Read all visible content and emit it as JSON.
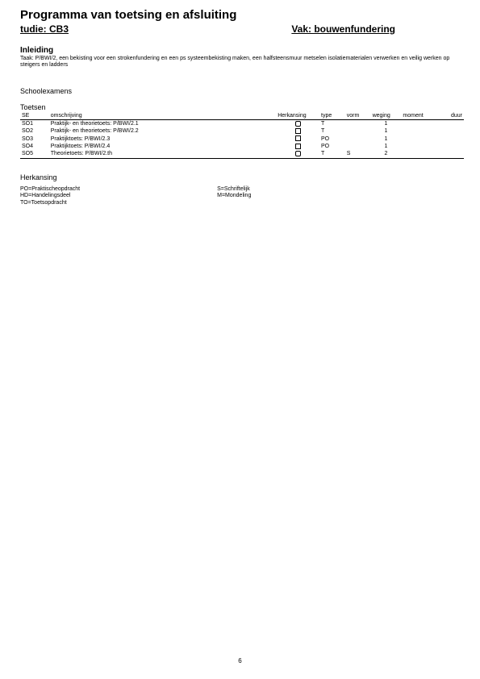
{
  "header": {
    "main_title": "Programma van toetsing en afsluiting",
    "studie_label": "tudie: CB3",
    "vak_label": "Vak: bouwenfundering"
  },
  "inleiding": {
    "heading": "Inleiding",
    "body": "Taak: P/BWI/2, een bekisting voor een strokenfundering en een ps systeembekisting maken, een halfsteensmuur metselen isolatiematerialen verwerken en veilig werken op steigers en ladders"
  },
  "schoolexamens": {
    "heading": "Schoolexamens",
    "toetsen_heading": "Toetsen",
    "columns": {
      "se": "SE",
      "omschrijving": "omschrijving",
      "herkansing": "Herkansing",
      "type": "type",
      "vorm": "vorm",
      "weging": "weging",
      "moment": "moment",
      "duur": "duur"
    },
    "rows": [
      {
        "se": "SO1",
        "oms": "Praktijk- en theorietoets: P/BWI/2.1",
        "herk_shape": "round",
        "type": "T",
        "vorm": "",
        "weging": "1"
      },
      {
        "se": "SO2",
        "oms": "Praktijk- en theorietoets: P/BWI/2.2",
        "herk_shape": "square",
        "type": "T",
        "vorm": "",
        "weging": "1"
      },
      {
        "se": "SO3",
        "oms": "Praktijktoets: P/BWI/2.3",
        "herk_shape": "square",
        "type": "PO",
        "vorm": "",
        "weging": "1"
      },
      {
        "se": "SO4",
        "oms": "Praktijktoets: P/BWI/2.4",
        "herk_shape": "square",
        "type": "PO",
        "vorm": "",
        "weging": "1"
      },
      {
        "se": "SO5",
        "oms": "Theorietoets: P/BWI/2.th",
        "herk_shape": "round",
        "type": "T",
        "vorm": "S",
        "weging": "2"
      }
    ]
  },
  "herkansing": {
    "heading": "Herkansing",
    "legend_left": "PO=Praktischeopdracht\nHD=Handelingsdeel\nTO=Toetsopdracht",
    "legend_right": "S=Schriftelijk\nM=Mondeling"
  },
  "page_number": "6"
}
